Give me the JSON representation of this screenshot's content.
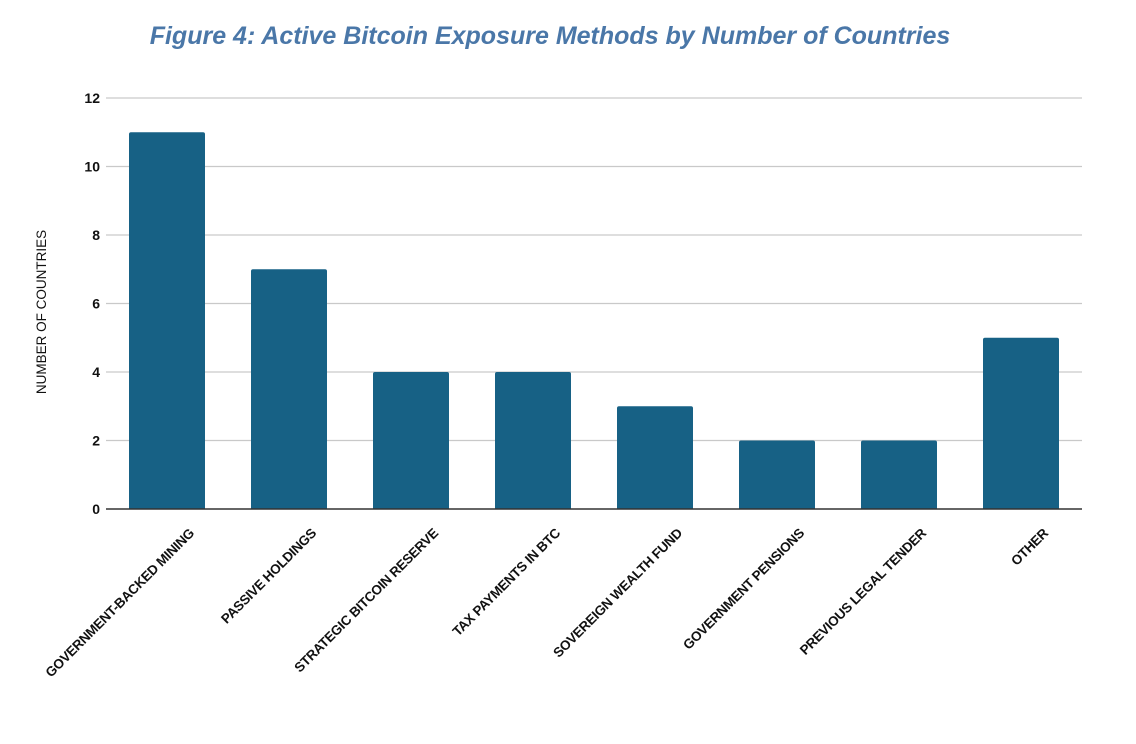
{
  "chart_data": {
    "type": "bar",
    "title": "Figure 4: Active Bitcoin Exposure Methods by Number of Countries",
    "xlabel": "",
    "ylabel": "NUMBER OF COUNTRIES",
    "categories": [
      "GOVERNMENT-BACKED MINING",
      "PASSIVE HOLDINGS",
      "STRATEGIC BITCOIN RESERVE",
      "TAX PAYMENTS IN BTC",
      "SOVEREIGN WEALTH FUND",
      "GOVERNMENT PENSIONS",
      "PREVIOUS LEGAL TENDER",
      "OTHER"
    ],
    "values": [
      11,
      7,
      4,
      4,
      3,
      2,
      2,
      5
    ],
    "ylim": [
      0,
      12
    ],
    "yticks": [
      "0",
      "2",
      "4",
      "6",
      "8",
      "10",
      "12"
    ],
    "grid": true,
    "bar_color": "#176185",
    "title_color": "#4a77a8"
  }
}
